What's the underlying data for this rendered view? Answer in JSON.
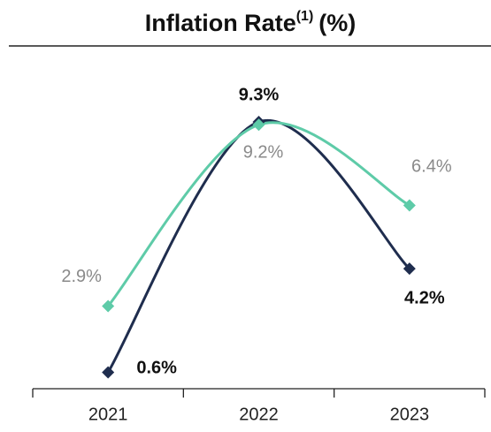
{
  "chart_data": {
    "type": "line",
    "title": "Inflation Rate",
    "title_note": "(1)",
    "title_unit": "(%)",
    "categories": [
      "2021",
      "2022",
      "2023"
    ],
    "series": [
      {
        "color": "#1f2d4e",
        "values": [
          0.6,
          9.3,
          4.2
        ],
        "value_labels": [
          "0.6%",
          "9.3%",
          "4.2%"
        ]
      },
      {
        "color": "#5ecba8",
        "values": [
          2.9,
          9.2,
          6.4
        ],
        "value_labels": [
          "2.9%",
          "9.2%",
          "6.4%"
        ]
      }
    ],
    "ylim": [
      0,
      12
    ],
    "smooth": true,
    "markers": "diamond"
  }
}
